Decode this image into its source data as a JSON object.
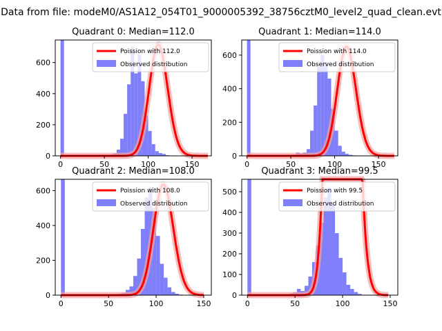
{
  "suptitle": "Data from file: modeM0/AS1A12_054T01_9000005392_38756cztM0_level2_quad_clean.evt",
  "colors": {
    "histogram": "#7f7ff9",
    "fit": "#ff0000",
    "fit_band": "#f4a0a0",
    "axes": "#000000"
  },
  "chart_data": [
    {
      "type": "bar",
      "title": "Quadrant 0: Median=112.0",
      "legend": {
        "placement": "top-right",
        "entries": [
          "Poission with 112.0",
          "Observed distribution"
        ]
      },
      "xlim": [
        -6,
        172
      ],
      "ylim": [
        0,
        745
      ],
      "xticks": [
        0,
        50,
        100,
        150
      ],
      "yticks": [
        0,
        200,
        400,
        600
      ],
      "bin_edges": [
        0,
        4
      ],
      "hist_values": [
        745
      ],
      "hist_start": 48,
      "hist_width": 4,
      "hist_series": [
        3,
        4,
        8,
        16,
        40,
        110,
        270,
        460,
        700,
        530,
        650,
        480,
        260,
        160,
        75,
        30,
        18,
        12,
        4
      ],
      "fit": {
        "mean": 112.0,
        "peak": 715,
        "range": [
          0,
          168
        ]
      }
    },
    {
      "type": "bar",
      "title": "Quadrant 1: Median=114.0",
      "legend": {
        "placement": "top-right",
        "entries": [
          "Poission with 114.0",
          "Observed distribution"
        ]
      },
      "xlim": [
        -6,
        172
      ],
      "ylim": [
        0,
        690
      ],
      "xticks": [
        0,
        50,
        100,
        150
      ],
      "yticks": [
        0,
        200,
        400,
        600
      ],
      "hist_values": [
        690
      ],
      "hist_start": 48,
      "hist_width": 4,
      "hist_series": [
        4,
        8,
        20,
        14,
        20,
        40,
        150,
        300,
        530,
        600,
        560,
        460,
        280,
        150,
        60,
        25,
        12,
        6,
        3
      ],
      "fit": {
        "mean": 114.0,
        "peak": 650,
        "range": [
          0,
          168
        ]
      }
    },
    {
      "type": "bar",
      "title": "Quadrant 2: Median=108.0",
      "legend": {
        "placement": "top-right",
        "entries": [
          "Poission with 108.0",
          "Observed distribution"
        ]
      },
      "xlim": [
        -6,
        158
      ],
      "ylim": [
        0,
        665
      ],
      "xticks": [
        0,
        50,
        100,
        150
      ],
      "yticks": [
        0,
        200,
        400,
        600
      ],
      "hist_values": [
        665
      ],
      "hist_start": 60,
      "hist_width": 4,
      "hist_series": [
        8,
        14,
        30,
        50,
        110,
        210,
        380,
        560,
        620,
        500,
        340,
        180,
        100,
        45,
        18,
        8,
        3
      ],
      "fit": {
        "mean": 108.0,
        "peak": 635,
        "range": [
          0,
          150
        ]
      }
    },
    {
      "type": "bar",
      "title": "Quadrant 3: Median=99.5",
      "legend": {
        "placement": "top-right",
        "entries": [
          "Poission with 99.5",
          "Observed distribution"
        ]
      },
      "xlim": [
        -6,
        158
      ],
      "ylim": [
        0,
        560
      ],
      "xticks": [
        0,
        50,
        100,
        150
      ],
      "yticks": [
        0,
        100,
        200,
        300,
        400,
        500
      ],
      "hist_values": [
        560
      ],
      "hist_start": 44,
      "hist_width": 4,
      "hist_series": [
        8,
        14,
        30,
        20,
        45,
        90,
        160,
        240,
        350,
        470,
        520,
        440,
        300,
        180,
        110,
        50,
        30,
        15,
        6
      ],
      "fit": {
        "mean": 99.5,
        "peak": 530,
        "range": [
          0,
          148
        ]
      }
    }
  ]
}
